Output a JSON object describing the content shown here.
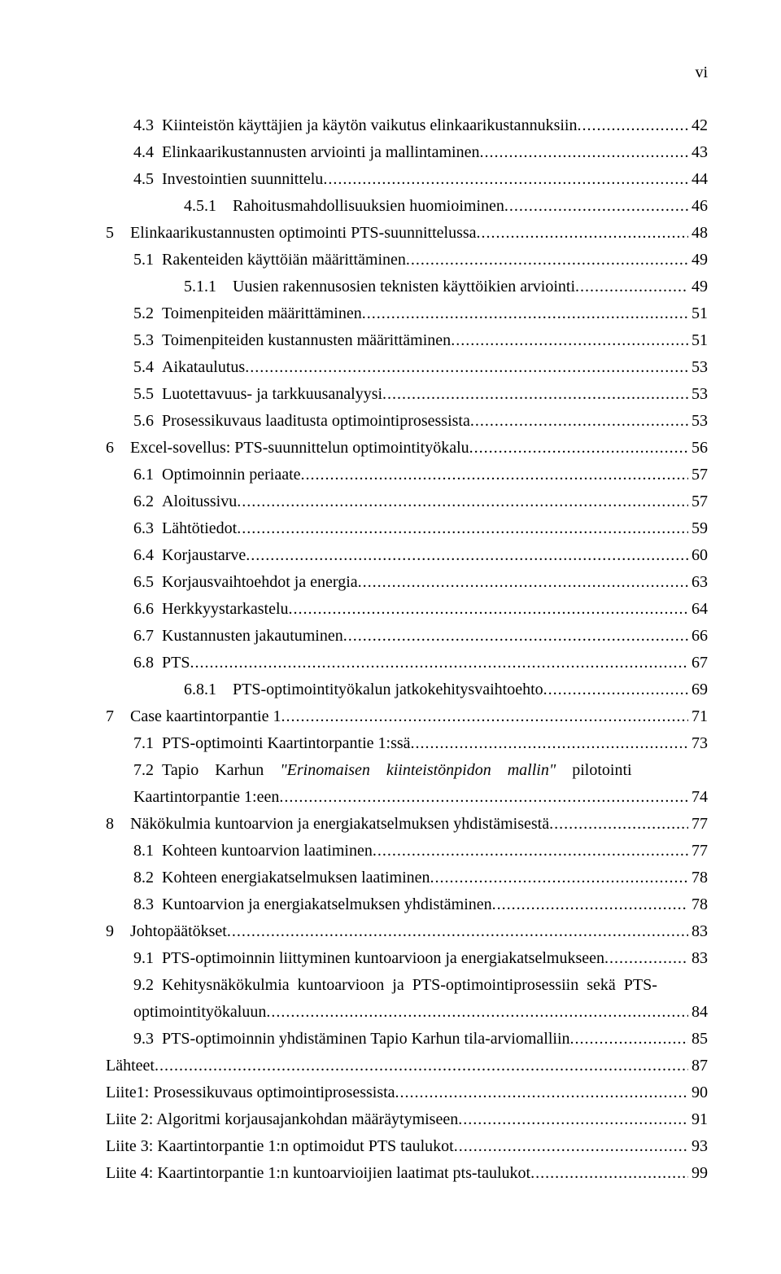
{
  "pageNumber": "vi",
  "font": {
    "family": "Times New Roman",
    "size_pt": 15,
    "color": "#000000"
  },
  "background_color": "#ffffff",
  "toc": [
    {
      "indent": 1,
      "num": "4.3",
      "title": "Kiinteistön käyttäjien ja käytön vaikutus elinkaarikustannuksiin",
      "page": "42"
    },
    {
      "indent": 1,
      "num": "4.4",
      "title": "Elinkaarikustannusten arviointi ja mallintaminen",
      "page": "43"
    },
    {
      "indent": 1,
      "num": "4.5",
      "title": "Investointien suunnittelu",
      "page": "44"
    },
    {
      "indent": 2,
      "num": "4.5.1",
      "title": "Rahoitusmahdollisuuksien huomioiminen",
      "page": "46"
    },
    {
      "indent": 0,
      "num": "5",
      "title": "Elinkaarikustannusten optimointi PTS-suunnittelussa",
      "page": "48"
    },
    {
      "indent": 1,
      "num": "5.1",
      "title": "Rakenteiden käyttöiän määrittäminen",
      "page": "49"
    },
    {
      "indent": 2,
      "num": "5.1.1",
      "title": "Uusien rakennusosien teknisten käyttöikien arviointi",
      "page": "49"
    },
    {
      "indent": 1,
      "num": "5.2",
      "title": "Toimenpiteiden määrittäminen",
      "page": "51"
    },
    {
      "indent": 1,
      "num": "5.3",
      "title": "Toimenpiteiden kustannusten määrittäminen",
      "page": "51"
    },
    {
      "indent": 1,
      "num": "5.4",
      "title": "Aikataulutus",
      "page": "53"
    },
    {
      "indent": 1,
      "num": "5.5",
      "title": "Luotettavuus- ja tarkkuusanalyysi",
      "page": "53"
    },
    {
      "indent": 1,
      "num": "5.6",
      "title": "Prosessikuvaus laaditusta optimointiprosessista",
      "page": "53"
    },
    {
      "indent": 0,
      "num": "6",
      "title": "Excel-sovellus: PTS-suunnittelun optimointityökalu",
      "page": "56"
    },
    {
      "indent": 1,
      "num": "6.1",
      "title": "Optimoinnin periaate",
      "page": "57"
    },
    {
      "indent": 1,
      "num": "6.2",
      "title": "Aloitussivu",
      "page": "57"
    },
    {
      "indent": 1,
      "num": "6.3",
      "title": "Lähtötiedot",
      "page": "59"
    },
    {
      "indent": 1,
      "num": "6.4",
      "title": "Korjaustarve",
      "page": "60"
    },
    {
      "indent": 1,
      "num": "6.5",
      "title": "Korjausvaihtoehdot ja energia",
      "page": "63"
    },
    {
      "indent": 1,
      "num": "6.6",
      "title": "Herkkyystarkastelu",
      "page": "64"
    },
    {
      "indent": 1,
      "num": "6.7",
      "title": "Kustannusten jakautuminen",
      "page": "66"
    },
    {
      "indent": 1,
      "num": "6.8",
      "title": "PTS",
      "page": "67"
    },
    {
      "indent": 2,
      "num": "6.8.1",
      "title": "PTS-optimointityökalun jatkokehitysvaihtoehto",
      "page": "69"
    },
    {
      "indent": 0,
      "num": "7",
      "title": "Case kaartintorpantie 1",
      "page": "71"
    },
    {
      "indent": 1,
      "num": "7.1",
      "title": "PTS-optimointi Kaartintorpantie 1:ssä",
      "page": "73"
    },
    {
      "indent": 1,
      "num": "7.2",
      "title_parts": {
        "pre": "Tapio    Karhun    ",
        "italic": "\"Erinomaisen    kiinteistönpidon    mallin\"",
        "post": "    pilotointi",
        "line2": "Kaartintorpantie 1:een"
      },
      "page": "74"
    },
    {
      "indent": 0,
      "num": "8",
      "title": "Näkökulmia kuntoarvion ja energiakatselmuksen yhdistämisestä",
      "page": "77"
    },
    {
      "indent": 1,
      "num": "8.1",
      "title": "Kohteen kuntoarvion laatiminen",
      "page": "77"
    },
    {
      "indent": 1,
      "num": "8.2",
      "title": "Kohteen energiakatselmuksen laatiminen",
      "page": "78"
    },
    {
      "indent": 1,
      "num": "8.3",
      "title": "Kuntoarvion ja energiakatselmuksen yhdistäminen",
      "page": "78"
    },
    {
      "indent": 0,
      "num": "9",
      "title": "Johtopäätökset",
      "page": "83"
    },
    {
      "indent": 1,
      "num": "9.1",
      "title": "PTS-optimoinnin liittyminen kuntoarvioon ja energiakatselmukseen",
      "page": "83"
    },
    {
      "indent": 1,
      "num": "9.2",
      "title_parts": {
        "pre": "Kehitysnäkökulmia  kuntoarvioon  ja  PTS-optimointiprosessiin  sekä  PTS-",
        "line2": "optimointityökaluun"
      },
      "page": "84"
    },
    {
      "indent": 1,
      "num": "9.3",
      "title": "PTS-optimoinnin yhdistäminen Tapio Karhun tila-arviomalliin",
      "page": "85"
    },
    {
      "indent": -1,
      "num": "",
      "title": "Lähteet",
      "page": "87"
    },
    {
      "indent": -1,
      "num": "",
      "title": "Liite1: Prosessikuvaus optimointiprosessista",
      "page": "90"
    },
    {
      "indent": -1,
      "num": "",
      "title": "Liite 2: Algoritmi korjausajankohdan määräytymiseen",
      "page": "91"
    },
    {
      "indent": -1,
      "num": "",
      "title": "Liite 3: Kaartintorpantie 1:n optimoidut PTS taulukot",
      "page": "93"
    },
    {
      "indent": -1,
      "num": "",
      "title": "Liite 4: Kaartintorpantie 1:n kuntoarvioijien laatimat pts-taulukot",
      "page": "99"
    }
  ]
}
